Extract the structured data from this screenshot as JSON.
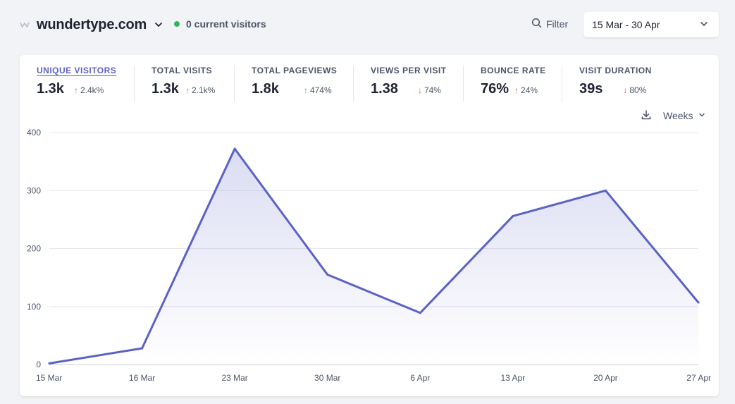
{
  "header": {
    "site_name": "wundertype.com",
    "favicon_icon": "wundertype-logo-icon",
    "current_visitors": "0 current visitors",
    "live_color": "#33b55c",
    "filter_label": "Filter",
    "date_range": "15 Mar - 30 Apr"
  },
  "metrics": [
    {
      "label": "UNIQUE VISITORS",
      "value": "1.3k",
      "direction": "up",
      "change": "2.4k%",
      "active": true
    },
    {
      "label": "TOTAL VISITS",
      "value": "1.3k",
      "direction": "up",
      "change": "2.1k%",
      "active": false
    },
    {
      "label": "TOTAL PAGEVIEWS",
      "value": "1.8k",
      "direction": "up",
      "change": "474%",
      "active": false
    },
    {
      "label": "VIEWS PER VISIT",
      "value": "1.38",
      "direction": "down",
      "change": "74%",
      "active": false
    },
    {
      "label": "BOUNCE RATE",
      "value": "76%",
      "direction": "up",
      "change": "24%",
      "active": false
    },
    {
      "label": "VISIT DURATION",
      "value": "39s",
      "direction": "down",
      "change": "80%",
      "active": false
    }
  ],
  "arrows": {
    "up": "↑",
    "down": "↓"
  },
  "controls": {
    "interval": "Weeks",
    "download_icon": "download-icon"
  },
  "colors": {
    "accent": "#5b62c6",
    "up": "#33b55c",
    "down": "#e05a5a"
  },
  "chart_data": {
    "type": "area",
    "title": "",
    "xlabel": "",
    "ylabel": "",
    "x": [
      "15 Mar",
      "16 Mar",
      "23 Mar",
      "30 Mar",
      "6 Apr",
      "13 Apr",
      "20 Apr",
      "27 Apr"
    ],
    "series": [
      {
        "values": [
          2,
          28,
          372,
          155,
          89,
          256,
          300,
          107
        ]
      }
    ],
    "ylim": [
      0,
      400
    ],
    "yticks": [
      0,
      100,
      200,
      300,
      400
    ],
    "grid": true,
    "legend": "none"
  }
}
